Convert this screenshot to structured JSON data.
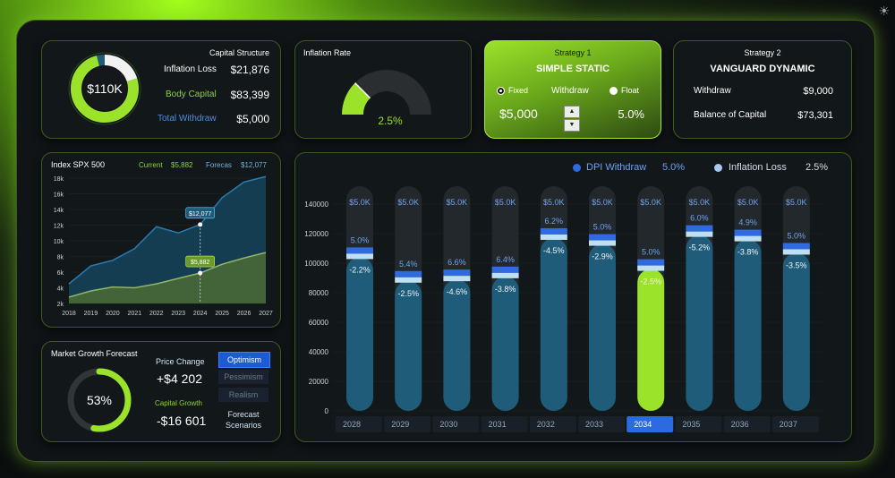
{
  "capital_structure": {
    "title": "Capital Structure",
    "donut_value": "$110K",
    "rows": [
      {
        "label": "Inflation Loss",
        "value": "$21,876"
      },
      {
        "label": "Body Capital",
        "value": "$83,399"
      },
      {
        "label": "Total Withdraw",
        "value": "$5,000"
      }
    ],
    "shares": {
      "inflation_loss": 0.2,
      "body_capital": 0.76,
      "total_withdraw": 0.04
    }
  },
  "inflation_rate": {
    "title": "Inflation Rate",
    "value": "2.5%",
    "level": 0.25
  },
  "strategy1": {
    "title": "Strategy 1",
    "name": "SIMPLE STATIC",
    "opt_fixed": "Fixed",
    "withdraw_label": "Withdraw",
    "opt_float": "Float",
    "withdraw_value": "$5,000",
    "rate": "5.0%"
  },
  "strategy2": {
    "title": "Strategy 2",
    "name": "VANGUARD DYNAMIC",
    "withdraw_label": "Withdraw",
    "withdraw_value": "$9,000",
    "balance_label": "Balance of Capital",
    "balance_value": "$73,301"
  },
  "index": {
    "title": "Index SPX 500",
    "current_label": "Current",
    "current_value": "$5,882",
    "forecast_label": "Forecas",
    "forecast_value": "$12,077",
    "callout_upper": "$12,077",
    "callout_lower": "$5,882"
  },
  "market_growth": {
    "title": "Market Growth Forecast",
    "percent": "53%",
    "fill": 0.53,
    "price_change_label": "Price Change",
    "price_change_value": "+$4 202",
    "capital_growth_label": "Capital Growth",
    "capital_growth_value": "-$16 601",
    "scenarios": [
      "Optimism",
      "Pessimism",
      "Realism"
    ],
    "scenarios_label_1": "Forecast",
    "scenarios_label_2": "Scenarios"
  },
  "bar_legend": {
    "withdraw_label": "DPI Withdraw",
    "withdraw_value": "5.0%",
    "inflation_label": "Inflation Loss",
    "inflation_value": "2.5%",
    "withdraw_color": "#2f6ae0",
    "inflation_color": "#a9c8ee"
  },
  "colors": {
    "accent": "#9be22a",
    "teal": "#1e5c7a",
    "blue": "#2f6ae0"
  },
  "chart_data": [
    {
      "type": "area",
      "title": "Index SPX 500",
      "x": [
        2018,
        2019,
        2020,
        2021,
        2022,
        2023,
        2024,
        2025,
        2026,
        2027
      ],
      "ylim": [
        2000,
        18000
      ],
      "y_ticks": [
        "2k",
        "4k",
        "6k",
        "8k",
        "10k",
        "12k",
        "14k",
        "16k",
        "18k"
      ],
      "series": [
        {
          "name": "Forecas",
          "values": [
            4500,
            6800,
            7500,
            9000,
            11800,
            11000,
            12077,
            15500,
            17500,
            18200
          ]
        },
        {
          "name": "Current",
          "values": [
            2800,
            3600,
            4100,
            4000,
            4500,
            5200,
            5882,
            7000,
            7800,
            8500
          ]
        }
      ]
    },
    {
      "type": "bar",
      "categories": [
        "2028",
        "2029",
        "2030",
        "2031",
        "2032",
        "2033",
        "2034",
        "2035",
        "2036",
        "2037"
      ],
      "ylim": [
        0,
        140000
      ],
      "y_ticks": [
        0,
        20000,
        40000,
        60000,
        80000,
        100000,
        120000,
        140000
      ],
      "values": [
        104000,
        88000,
        89000,
        91000,
        117000,
        113000,
        96000,
        119000,
        116000,
        107000
      ],
      "withdraw_labels": [
        "$5.0K",
        "$5.0K",
        "$5.0K",
        "$5.0K",
        "$5.0K",
        "$5.0K",
        "$5.0K",
        "$5.0K",
        "$5.0K",
        "$5.0K"
      ],
      "top_pct": [
        "5.0%",
        "5.4%",
        "6.6%",
        "6.4%",
        "6.2%",
        "5.0%",
        "5.0%",
        "6.0%",
        "4.9%",
        "5.0%"
      ],
      "bottom_pct": [
        "-2.2%",
        "-2.5%",
        "-4.6%",
        "-3.8%",
        "-4.5%",
        "-2.9%",
        "-2.5%",
        "-5.2%",
        "-3.8%",
        "-3.5%"
      ],
      "highlight_index": 6
    }
  ]
}
